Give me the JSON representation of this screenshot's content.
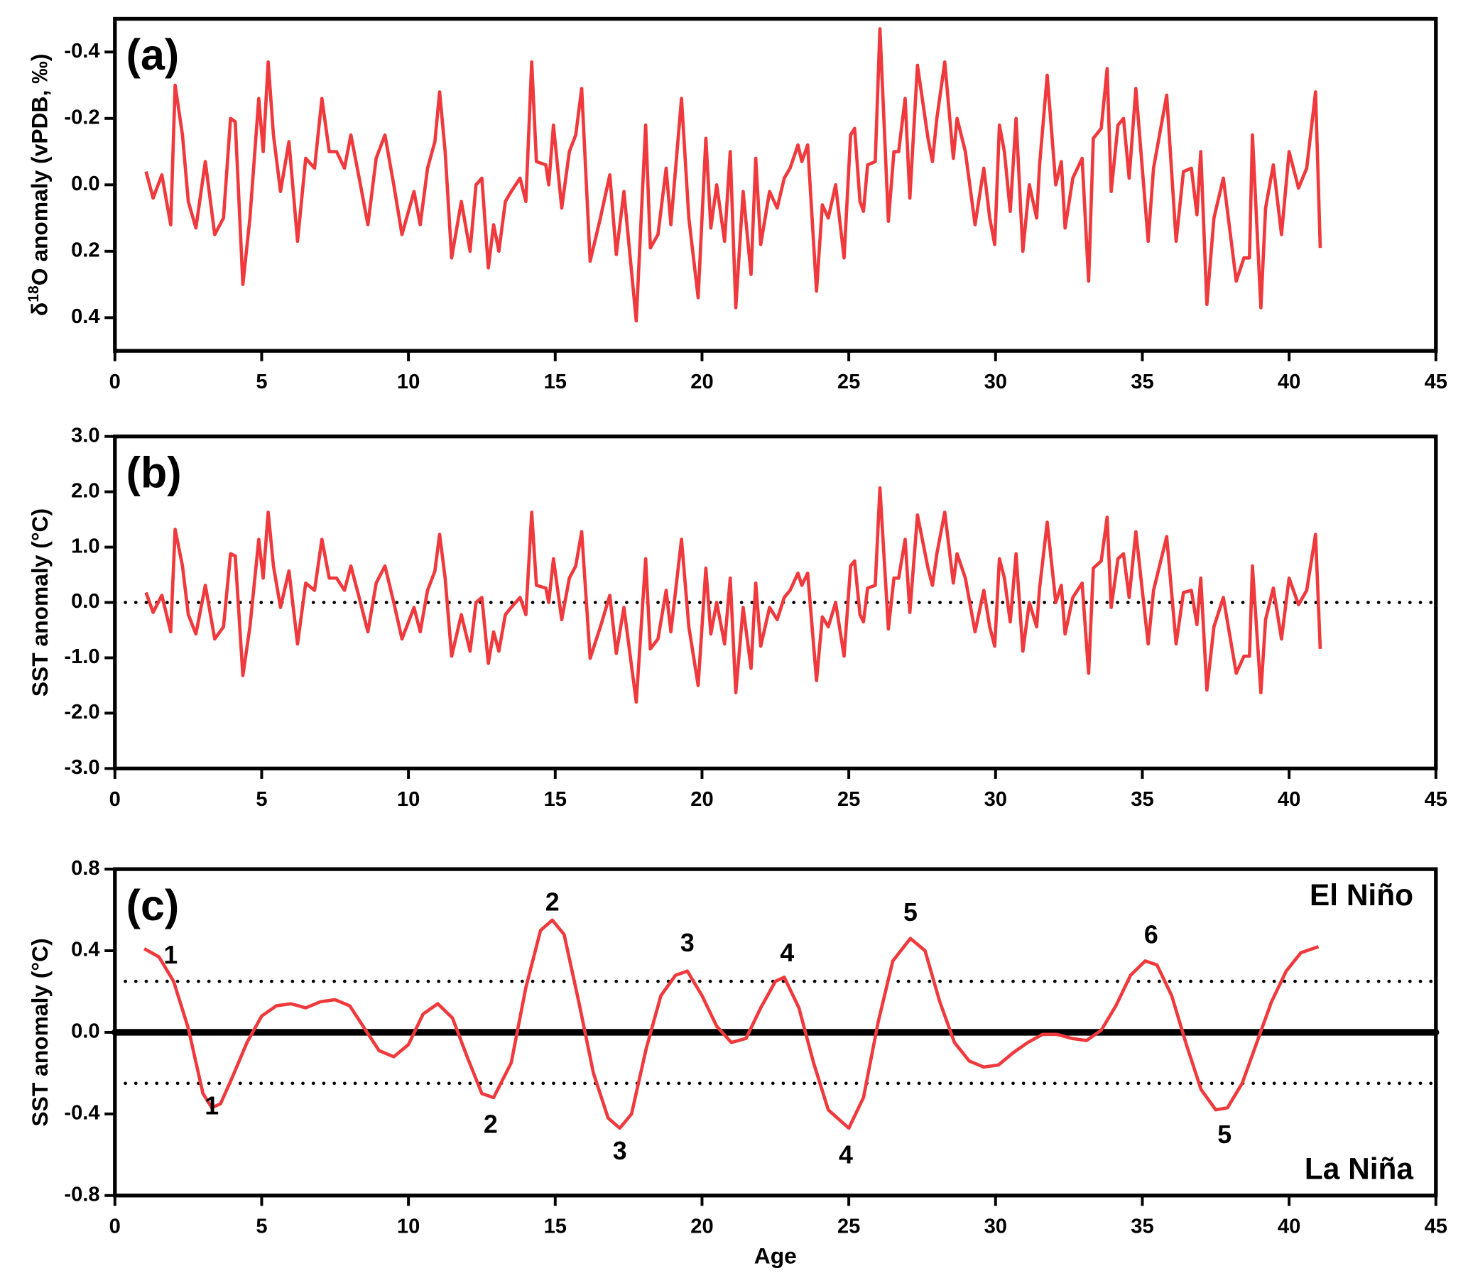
{
  "chart_data": [
    {
      "type": "line",
      "panel_label": "(a)",
      "ylabel_parts": [
        "δ",
        "18",
        "O anomaly (vPDB, ‰)"
      ],
      "xlim": [
        0,
        45
      ],
      "xticks": [
        0,
        5,
        10,
        15,
        20,
        25,
        30,
        35,
        40,
        45
      ],
      "ylim": [
        0.5,
        -0.5
      ],
      "yticks": [
        -0.4,
        -0.2,
        {
          "value": 0,
          "label": "0.0"
        },
        0.2,
        0.4
      ],
      "x": [
        1.06,
        1.3,
        1.6,
        1.9,
        2.05,
        2.3,
        2.5,
        2.76,
        3.08,
        3.4,
        3.7,
        3.94,
        4.1,
        4.36,
        4.6,
        4.9,
        5.05,
        5.22,
        5.4,
        5.64,
        5.93,
        6.22,
        6.5,
        6.8,
        7.05,
        7.3,
        7.55,
        7.82,
        8.04,
        8.3,
        8.62,
        8.9,
        9.2,
        9.5,
        9.78,
        10.19,
        10.4,
        10.65,
        10.9,
        11.06,
        11.25,
        11.47,
        11.8,
        12.1,
        12.3,
        12.5,
        12.72,
        12.9,
        13.08,
        13.3,
        13.5,
        13.8,
        14.0,
        14.2,
        14.36,
        14.68,
        14.78,
        14.94,
        15.22,
        15.48,
        15.7,
        15.9,
        16.19,
        16.54,
        16.86,
        17.08,
        17.34,
        17.76,
        18.08,
        18.24,
        18.5,
        18.78,
        18.94,
        19.3,
        19.55,
        19.87,
        20.13,
        20.3,
        20.5,
        20.77,
        20.96,
        21.15,
        21.4,
        21.67,
        21.83,
        22.0,
        22.3,
        22.56,
        22.8,
        23.0,
        23.27,
        23.4,
        23.6,
        23.9,
        24.1,
        24.3,
        24.55,
        24.84,
        25.06,
        25.2,
        25.38,
        25.5,
        25.64,
        25.9,
        26.06,
        26.35,
        26.54,
        26.7,
        26.92,
        27.08,
        27.34,
        27.7,
        27.85,
        28.0,
        28.27,
        28.56,
        28.69,
        28.97,
        29.3,
        29.6,
        29.8,
        29.97,
        30.13,
        30.3,
        30.5,
        30.7,
        30.93,
        31.15,
        31.4,
        31.5,
        31.76,
        32.05,
        32.24,
        32.37,
        32.63,
        32.95,
        33.17,
        33.33,
        33.6,
        33.8,
        33.94,
        34.17,
        34.36,
        34.55,
        34.78,
        35.2,
        35.38,
        35.83,
        36.15,
        36.4,
        36.67,
        36.86,
        36.99,
        37.2,
        37.44,
        37.76,
        38.2,
        38.46,
        38.65,
        38.75,
        39.04,
        39.2,
        39.46,
        39.74,
        40.0,
        40.32,
        40.6,
        40.9,
        41.06
      ],
      "series": [
        {
          "color": "#f0393c",
          "values": [
            -0.04,
            0.04,
            -0.03,
            0.12,
            -0.3,
            -0.15,
            0.05,
            0.13,
            -0.07,
            0.15,
            0.1,
            -0.2,
            -0.19,
            0.3,
            0.1,
            -0.26,
            -0.1,
            -0.37,
            -0.15,
            0.02,
            -0.13,
            0.17,
            -0.08,
            -0.05,
            -0.26,
            -0.1,
            -0.1,
            -0.05,
            -0.15,
            -0.03,
            0.12,
            -0.08,
            -0.15,
            0,
            0.15,
            0.02,
            0.12,
            -0.05,
            -0.13,
            -0.28,
            -0.1,
            0.22,
            0.05,
            0.2,
            0,
            -0.02,
            0.25,
            0.12,
            0.2,
            0.05,
            0.02,
            -0.02,
            0.05,
            -0.37,
            -0.07,
            -0.06,
            0,
            -0.18,
            0.07,
            -0.1,
            -0.15,
            -0.29,
            0.23,
            0.1,
            -0.03,
            0.21,
            0.02,
            0.41,
            -0.18,
            0.19,
            0.15,
            -0.05,
            0.12,
            -0.26,
            0.1,
            0.34,
            -0.14,
            0.13,
            0,
            0.17,
            -0.1,
            0.37,
            0.02,
            0.27,
            -0.08,
            0.18,
            0.02,
            0.07,
            -0.02,
            -0.05,
            -0.12,
            -0.07,
            -0.12,
            0.32,
            0.06,
            0.1,
            0,
            0.22,
            -0.15,
            -0.17,
            0.05,
            0.08,
            -0.06,
            -0.07,
            -0.47,
            0.11,
            -0.1,
            -0.1,
            -0.26,
            0.04,
            -0.36,
            -0.14,
            -0.07,
            -0.2,
            -0.37,
            -0.08,
            -0.2,
            -0.1,
            0.12,
            -0.05,
            0.1,
            0.18,
            -0.18,
            -0.1,
            0.08,
            -0.2,
            0.2,
            0,
            0.1,
            -0.06,
            -0.33,
            0,
            -0.07,
            0.13,
            -0.02,
            -0.08,
            0.29,
            -0.14,
            -0.17,
            -0.35,
            0.02,
            -0.18,
            -0.2,
            -0.02,
            -0.29,
            0.17,
            -0.05,
            -0.27,
            0.17,
            -0.04,
            -0.05,
            0.09,
            -0.1,
            0.36,
            0.1,
            -0.02,
            0.29,
            0.22,
            0.22,
            -0.15,
            0.37,
            0.07,
            -0.06,
            0.15,
            -0.1,
            0.01,
            -0.05,
            -0.28,
            0.19
          ]
        }
      ]
    },
    {
      "type": "line",
      "panel_label": "(b)",
      "ylabel": "SST anomaly (°C)",
      "xlim": [
        0,
        45
      ],
      "xticks": [
        0,
        5,
        10,
        15,
        20,
        25,
        30,
        35,
        40,
        45
      ],
      "ylim": [
        -3,
        3
      ],
      "yticks": [
        {
          "value": -3,
          "label": "-3.0"
        },
        {
          "value": -2,
          "label": "-2.0"
        },
        {
          "value": -1,
          "label": "-1.0"
        },
        {
          "value": 0,
          "label": "0.0"
        },
        {
          "value": 1,
          "label": "1.0"
        },
        {
          "value": 2,
          "label": "2.0"
        },
        {
          "value": 3,
          "label": "3.0"
        }
      ],
      "hlines": [
        {
          "value": 0,
          "style": "dotted"
        }
      ],
      "x": [
        1.06,
        1.3,
        1.6,
        1.9,
        2.05,
        2.3,
        2.5,
        2.76,
        3.08,
        3.4,
        3.7,
        3.94,
        4.1,
        4.36,
        4.6,
        4.9,
        5.05,
        5.22,
        5.4,
        5.64,
        5.93,
        6.22,
        6.5,
        6.8,
        7.05,
        7.3,
        7.55,
        7.82,
        8.04,
        8.3,
        8.62,
        8.9,
        9.2,
        9.5,
        9.78,
        10.19,
        10.4,
        10.65,
        10.9,
        11.06,
        11.25,
        11.47,
        11.8,
        12.1,
        12.3,
        12.5,
        12.72,
        12.9,
        13.08,
        13.3,
        13.5,
        13.8,
        14.0,
        14.2,
        14.36,
        14.68,
        14.78,
        14.94,
        15.22,
        15.48,
        15.7,
        15.9,
        16.19,
        16.54,
        16.86,
        17.08,
        17.34,
        17.76,
        18.08,
        18.24,
        18.5,
        18.78,
        18.94,
        19.3,
        19.55,
        19.87,
        20.13,
        20.3,
        20.5,
        20.77,
        20.96,
        21.15,
        21.4,
        21.67,
        21.83,
        22.0,
        22.3,
        22.56,
        22.8,
        23.0,
        23.27,
        23.4,
        23.6,
        23.9,
        24.1,
        24.3,
        24.55,
        24.84,
        25.06,
        25.2,
        25.38,
        25.5,
        25.64,
        25.9,
        26.06,
        26.35,
        26.54,
        26.7,
        26.92,
        27.08,
        27.34,
        27.7,
        27.85,
        28.0,
        28.27,
        28.56,
        28.69,
        28.97,
        29.3,
        29.6,
        29.8,
        29.97,
        30.13,
        30.3,
        30.5,
        30.7,
        30.93,
        31.15,
        31.4,
        31.5,
        31.76,
        32.05,
        32.24,
        32.37,
        32.63,
        32.95,
        33.17,
        33.33,
        33.6,
        33.8,
        33.94,
        34.17,
        34.36,
        34.55,
        34.78,
        35.2,
        35.38,
        35.83,
        36.15,
        36.4,
        36.67,
        36.86,
        36.99,
        37.2,
        37.44,
        37.76,
        38.2,
        38.46,
        38.65,
        38.75,
        39.04,
        39.2,
        39.46,
        39.74,
        40.0,
        40.32,
        40.6,
        40.9,
        41.06
      ],
      "series": [
        {
          "color": "#f0393c",
          "values": [
            0.18,
            -0.18,
            0.13,
            -0.53,
            1.32,
            0.66,
            -0.22,
            -0.57,
            0.31,
            -0.66,
            -0.44,
            0.88,
            0.84,
            -1.32,
            -0.44,
            1.14,
            0.44,
            1.63,
            0.66,
            -0.09,
            0.57,
            -0.75,
            0.35,
            0.22,
            1.14,
            0.44,
            0.44,
            0.22,
            0.66,
            0.13,
            -0.53,
            0.35,
            0.66,
            0,
            -0.66,
            -0.09,
            -0.53,
            0.22,
            0.57,
            1.23,
            0.44,
            -0.97,
            -0.22,
            -0.88,
            0,
            0.09,
            -1.1,
            -0.53,
            -0.88,
            -0.22,
            -0.09,
            0.09,
            -0.22,
            1.63,
            0.31,
            0.26,
            0,
            0.79,
            -0.31,
            0.44,
            0.66,
            1.28,
            -1.01,
            -0.44,
            0.13,
            -0.92,
            -0.09,
            -1.8,
            0.79,
            -0.84,
            -0.66,
            0.22,
            -0.53,
            1.14,
            -0.44,
            -1.5,
            0.62,
            -0.57,
            0,
            -0.75,
            0.44,
            -1.63,
            -0.09,
            -1.19,
            0.35,
            -0.79,
            -0.09,
            -0.31,
            0.09,
            0.22,
            0.53,
            0.31,
            0.53,
            -1.41,
            -0.26,
            -0.44,
            0,
            -0.97,
            0.66,
            0.75,
            -0.22,
            -0.35,
            0.26,
            0.31,
            2.07,
            -0.48,
            0.44,
            0.44,
            1.14,
            -0.18,
            1.58,
            0.62,
            0.31,
            0.88,
            1.63,
            0.35,
            0.88,
            0.44,
            -0.53,
            0.22,
            -0.44,
            -0.79,
            0.79,
            0.44,
            -0.35,
            0.88,
            -0.88,
            0,
            -0.44,
            0.26,
            1.45,
            0,
            0.31,
            -0.57,
            0.09,
            0.35,
            -1.28,
            0.62,
            0.75,
            1.54,
            -0.09,
            0.79,
            0.88,
            0.09,
            1.28,
            -0.75,
            0.22,
            1.19,
            -0.75,
            0.18,
            0.22,
            -0.4,
            0.44,
            -1.58,
            -0.44,
            0.09,
            -1.28,
            -0.97,
            -0.97,
            0.66,
            -1.63,
            -0.31,
            0.26,
            -0.66,
            0.44,
            -0.04,
            0.22,
            1.23,
            -0.84
          ]
        }
      ]
    },
    {
      "type": "line",
      "panel_label": "(c)",
      "ylabel": "SST anomaly (°C)",
      "xlabel": "Age",
      "xlim": [
        0,
        45
      ],
      "xticks": [
        0,
        5,
        10,
        15,
        20,
        25,
        30,
        35,
        40,
        45
      ],
      "ylim": [
        -0.8,
        0.8
      ],
      "yticks": [
        -0.8,
        -0.4,
        {
          "value": 0,
          "label": "0.0"
        },
        0.4,
        0.8
      ],
      "hlines": [
        {
          "value": 0,
          "style": "solid"
        },
        {
          "value": 0.25,
          "style": "dotted"
        },
        {
          "value": -0.25,
          "style": "dotted"
        }
      ],
      "x": [
        1.0,
        1.5,
        2.0,
        2.5,
        3.0,
        3.3,
        3.6,
        4.0,
        4.5,
        5.0,
        5.5,
        6.0,
        6.5,
        7.0,
        7.5,
        8.0,
        8.5,
        9.0,
        9.5,
        10.0,
        10.5,
        11.0,
        11.5,
        12.0,
        12.5,
        12.9,
        13.5,
        14.0,
        14.5,
        14.9,
        15.3,
        15.8,
        16.3,
        16.8,
        17.2,
        17.6,
        18.1,
        18.6,
        19.1,
        19.5,
        20.0,
        20.5,
        21.0,
        21.5,
        22.0,
        22.5,
        22.8,
        23.3,
        23.8,
        24.3,
        25.0,
        25.5,
        26.0,
        26.5,
        27.1,
        27.6,
        28.1,
        28.6,
        29.1,
        29.6,
        30.1,
        30.6,
        31.1,
        31.6,
        32.1,
        32.6,
        33.1,
        33.6,
        34.1,
        34.6,
        35.1,
        35.5,
        36.0,
        36.5,
        37.0,
        37.5,
        37.9,
        38.4,
        38.9,
        39.4,
        39.9,
        40.4,
        41.0
      ],
      "series": [
        {
          "color": "#f0393c",
          "values": [
            0.41,
            0.37,
            0.25,
            0.02,
            -0.3,
            -0.37,
            -0.35,
            -0.22,
            -0.05,
            0.08,
            0.13,
            0.14,
            0.12,
            0.15,
            0.16,
            0.13,
            0.02,
            -0.09,
            -0.12,
            -0.06,
            0.09,
            0.14,
            0.07,
            -0.12,
            -0.3,
            -0.32,
            -0.15,
            0.22,
            0.5,
            0.55,
            0.48,
            0.15,
            -0.2,
            -0.42,
            -0.47,
            -0.4,
            -0.08,
            0.18,
            0.28,
            0.3,
            0.18,
            0.03,
            -0.05,
            -0.03,
            0.12,
            0.25,
            0.27,
            0.12,
            -0.15,
            -0.38,
            -0.47,
            -0.32,
            0.05,
            0.35,
            0.46,
            0.4,
            0.15,
            -0.05,
            -0.14,
            -0.17,
            -0.16,
            -0.1,
            -0.05,
            -0.01,
            -0.01,
            -0.03,
            -0.04,
            0.01,
            0.13,
            0.28,
            0.35,
            0.33,
            0.18,
            -0.06,
            -0.28,
            -0.38,
            -0.37,
            -0.25,
            -0.05,
            0.15,
            0.3,
            0.39,
            0.42
          ]
        }
      ],
      "annotations": [
        {
          "text": "1",
          "x": 1.9,
          "y": 0.37
        },
        {
          "text": "1",
          "x": 3.3,
          "y": -0.37
        },
        {
          "text": "2",
          "x": 14.9,
          "y": 0.63
        },
        {
          "text": "2",
          "x": 12.8,
          "y": -0.46
        },
        {
          "text": "3",
          "x": 19.5,
          "y": 0.43
        },
        {
          "text": "3",
          "x": 17.2,
          "y": -0.59
        },
        {
          "text": "4",
          "x": 22.9,
          "y": 0.38
        },
        {
          "text": "4",
          "x": 24.9,
          "y": -0.61
        },
        {
          "text": "5",
          "x": 27.1,
          "y": 0.58
        },
        {
          "text": "5",
          "x": 37.8,
          "y": -0.51
        },
        {
          "text": "6",
          "x": 35.3,
          "y": 0.47
        }
      ],
      "corner_labels": [
        {
          "text": "El Niño",
          "corner": "upper right"
        },
        {
          "text": "La Niña",
          "corner": "lower right"
        }
      ]
    }
  ]
}
